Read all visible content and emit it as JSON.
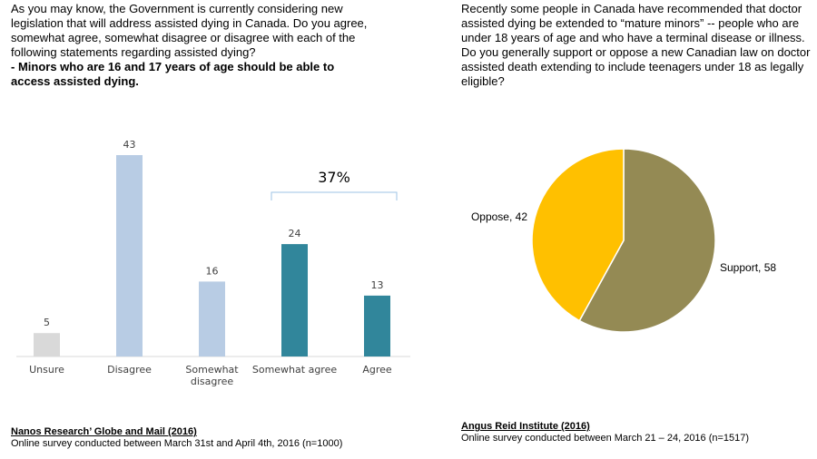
{
  "left": {
    "question": "As you may know, the Government is currently considering new legislation that will address assisted dying in Canada. Do you agree, somewhat agree, somewhat disagree or disagree with each of the following statements regarding assisted dying?",
    "statement": "- Minors who are 16 and 17 years of age should be able to access assisted dying.",
    "source_title": "Nanos Research’ Globe and Mail (2016)",
    "source_note": "Online survey conducted between March 31st and April 4th, 2016 (n=1000)"
  },
  "right": {
    "question": "Recently some people in Canada have recommended that doctor assisted dying be extended to “mature minors” -- people who are under 18 years of age and who have a terminal disease or illness. Do you generally support or oppose a new Canadian law on doctor assisted death extending to include teenagers under 18 as legally eligible?",
    "source_title": "Angus Reid Institute (2016)",
    "source_note": "Online survey conducted between March 21 – 24, 2016 (n=1517)"
  },
  "chart_data": [
    {
      "type": "bar",
      "categories": [
        "Unsure",
        "Disagree",
        "Somewhat disagree",
        "Somewhat agree",
        "Agree"
      ],
      "category_label_lines": [
        [
          "Unsure"
        ],
        [
          "Disagree"
        ],
        [
          "Somewhat",
          "disagree"
        ],
        [
          "Somewhat agree"
        ],
        [
          "Agree"
        ]
      ],
      "values": [
        5,
        43,
        16,
        24,
        13
      ],
      "data_labels": [
        "5",
        "43",
        "16",
        "24",
        "13"
      ],
      "colors": [
        "#d9d9d9",
        "#b8cce4",
        "#b8cce4",
        "#31869b",
        "#31869b"
      ],
      "ylim": [
        0,
        43
      ],
      "grid": false,
      "annotation": "37%"
    },
    {
      "type": "pie",
      "labels": [
        "Support",
        "Oppose"
      ],
      "values": [
        58,
        42
      ],
      "slice_labels": [
        "Support, 58",
        "Oppose, 42"
      ],
      "colors": [
        "#948a54",
        "#ffc000"
      ]
    }
  ]
}
